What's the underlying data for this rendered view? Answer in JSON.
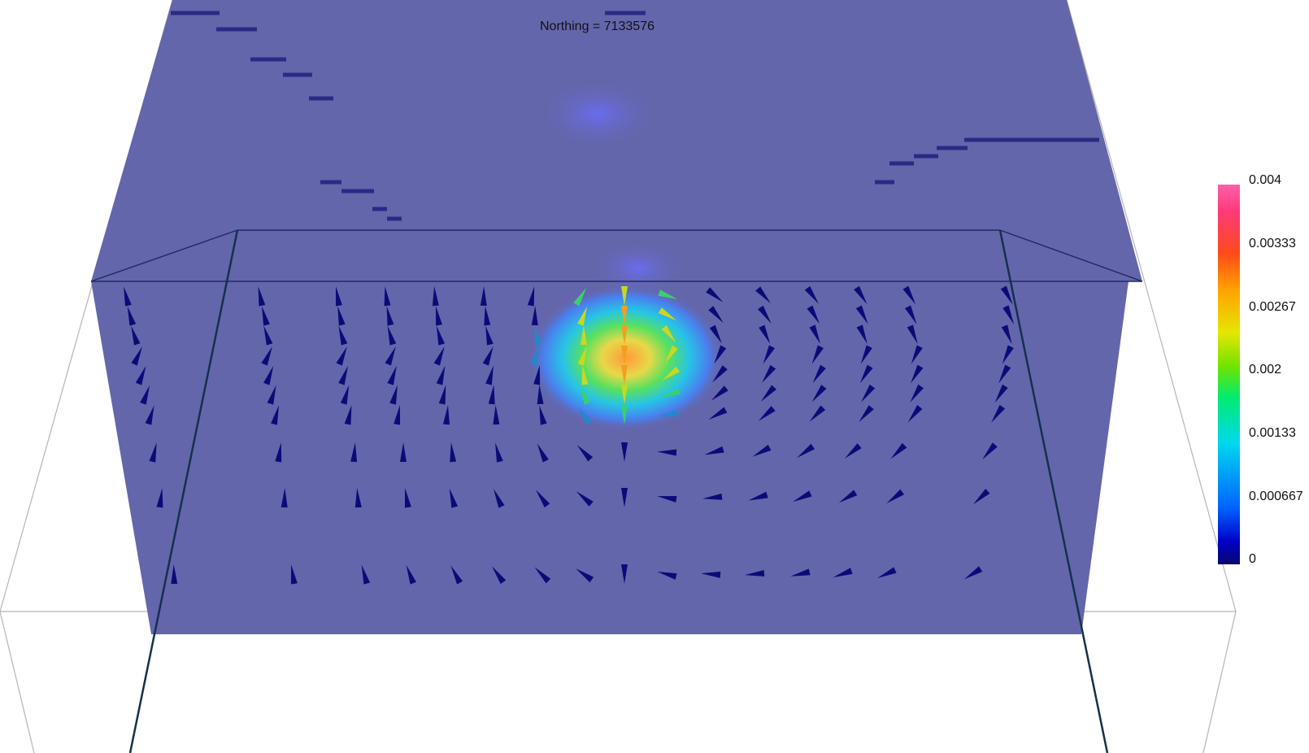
{
  "title": "Northing =  7133576",
  "colorbar": {
    "labels": [
      "0.004",
      "0.00333",
      "0.00267",
      "0.002",
      "0.00133",
      "0.000667",
      "0"
    ]
  },
  "colors": {
    "background": "#ffffff",
    "slab": "#6466ab",
    "vector": "#0b0b78",
    "box_lines": "#b5b5b5",
    "box_front": "#15304d"
  }
}
